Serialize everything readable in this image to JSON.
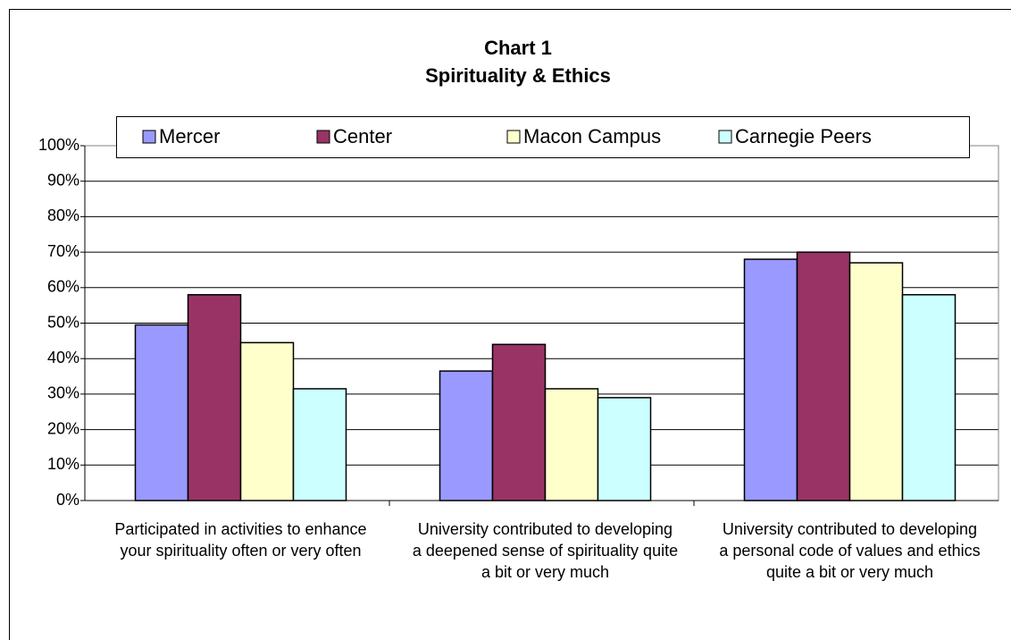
{
  "chart_data": {
    "type": "bar",
    "title": "Chart 1",
    "subtitle": "Spirituality & Ethics",
    "categories": [
      "Participated in activities to enhance your spirituality often or very often",
      "University contributed to developing a deepened sense of spirituality quite a bit or very much",
      "University contributed to developing a personal code of values and ethics quite a bit or very much"
    ],
    "series": [
      {
        "name": "Mercer",
        "color": "#9999ff",
        "values": [
          49.5,
          36.5,
          68
        ]
      },
      {
        "name": "Center",
        "color": "#993366",
        "values": [
          58,
          44,
          70
        ]
      },
      {
        "name": "Macon Campus",
        "color": "#ffffcc",
        "values": [
          44.5,
          31.5,
          67
        ]
      },
      {
        "name": "Carnegie Peers",
        "color": "#ccffff",
        "values": [
          31.5,
          29,
          58
        ]
      }
    ],
    "ylim": [
      0,
      100
    ],
    "yticks": [
      {
        "value": 0,
        "label": "0%"
      },
      {
        "value": 10,
        "label": "10%"
      },
      {
        "value": 20,
        "label": "20%"
      },
      {
        "value": 30,
        "label": "30%"
      },
      {
        "value": 40,
        "label": "40%"
      },
      {
        "value": 50,
        "label": "50%"
      },
      {
        "value": 60,
        "label": "60%"
      },
      {
        "value": 70,
        "label": "70%"
      },
      {
        "value": 80,
        "label": "80%"
      },
      {
        "value": 90,
        "label": "90%"
      },
      {
        "value": 100,
        "label": "100%"
      }
    ],
    "grid": true,
    "legend": "top"
  }
}
